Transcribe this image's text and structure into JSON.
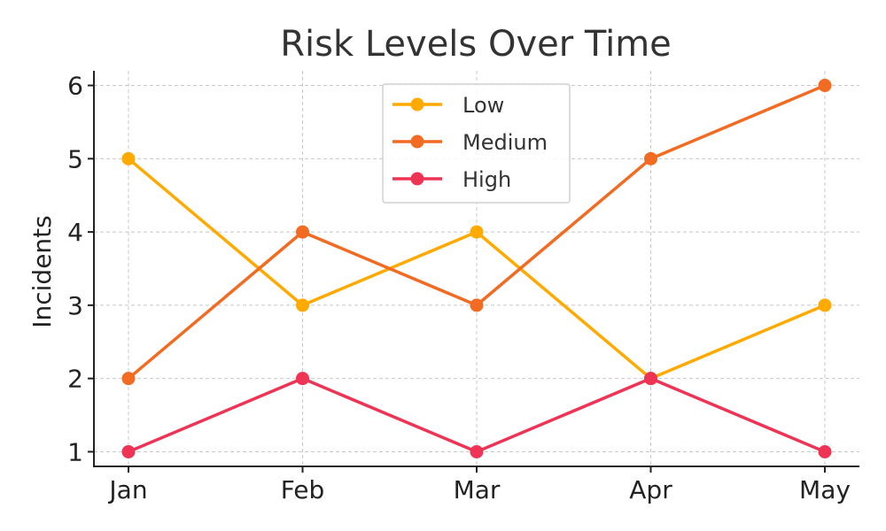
{
  "chart_data": {
    "type": "line",
    "title": "Risk Levels Over Time",
    "xlabel": "",
    "ylabel": "Incidents",
    "categories": [
      "Jan",
      "Feb",
      "Mar",
      "Apr",
      "May"
    ],
    "ylim": [
      0.8,
      6.2
    ],
    "yticks": [
      1,
      2,
      3,
      4,
      5,
      6
    ],
    "grid": true,
    "legend_position": "top-center",
    "series": [
      {
        "name": "Low",
        "color": "#FFAA00",
        "values": [
          5,
          3,
          4,
          2,
          3
        ]
      },
      {
        "name": "Medium",
        "color": "#F26B22",
        "values": [
          2,
          4,
          3,
          5,
          6
        ]
      },
      {
        "name": "High",
        "color": "#EE3355",
        "values": [
          1,
          2,
          1,
          2,
          1
        ]
      }
    ]
  }
}
